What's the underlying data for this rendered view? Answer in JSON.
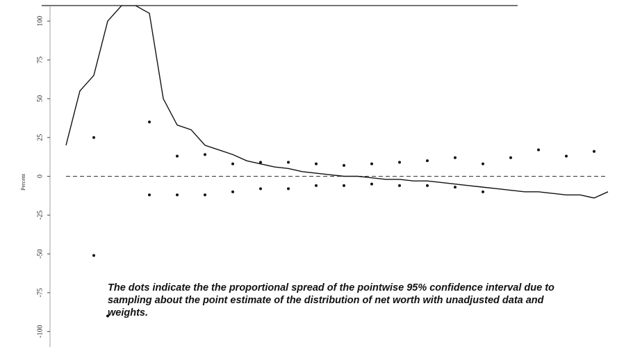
{
  "chart_data": {
    "type": "line",
    "y_label": "Percent",
    "annotation": [
      "The dots indicate the the proportional spread of the pointwise 95% confidence interval due to",
      "sampling about the point estimate of the distribution of net worth with unadjusted data and",
      "weights."
    ],
    "categories": [
      null,
      null,
      null,
      null,
      null,
      null,
      null,
      null,
      null,
      null,
      null,
      null,
      null,
      null,
      null,
      null,
      null,
      null,
      null,
      null,
      null,
      null,
      null,
      null,
      null,
      null,
      null,
      null,
      null,
      null,
      null,
      null,
      null,
      null,
      null,
      null,
      null,
      null,
      null,
      null
    ],
    "ylim": [
      -110,
      110
    ],
    "yticks": [
      100,
      75,
      50,
      25,
      0,
      -25,
      -50,
      -75,
      -100
    ],
    "reference_line": 0,
    "series": [
      {
        "kind": "line",
        "color": "#111111",
        "values": [
          20,
          55,
          65,
          100,
          110,
          110,
          105,
          50,
          33,
          30,
          20,
          17,
          14,
          10,
          8,
          6,
          5,
          3,
          2,
          1,
          0,
          0,
          -1,
          -2,
          -2,
          -3,
          -3,
          -4,
          -5,
          -6,
          -7,
          -8,
          -9,
          -10,
          -10,
          -11,
          -12,
          -12,
          -14,
          -10
        ]
      },
      {
        "kind": "points",
        "color": "#111111",
        "values": [
          null,
          null,
          25,
          null,
          null,
          null,
          35,
          null,
          13,
          null,
          14,
          null,
          8,
          null,
          9,
          null,
          9,
          null,
          8,
          null,
          7,
          null,
          8,
          null,
          9,
          null,
          10,
          null,
          12,
          null,
          8,
          null,
          12,
          null,
          17,
          null,
          13,
          null,
          16,
          null
        ]
      },
      {
        "kind": "points",
        "color": "#111111",
        "values": [
          null,
          null,
          -51,
          -90,
          null,
          null,
          -12,
          null,
          -12,
          null,
          -12,
          null,
          -10,
          null,
          -8,
          null,
          -8,
          null,
          -6,
          null,
          -6,
          null,
          -5,
          null,
          -6,
          null,
          -6,
          null,
          -7,
          null,
          -10,
          null,
          null,
          null,
          null,
          null,
          null,
          null,
          null,
          null
        ]
      }
    ]
  }
}
